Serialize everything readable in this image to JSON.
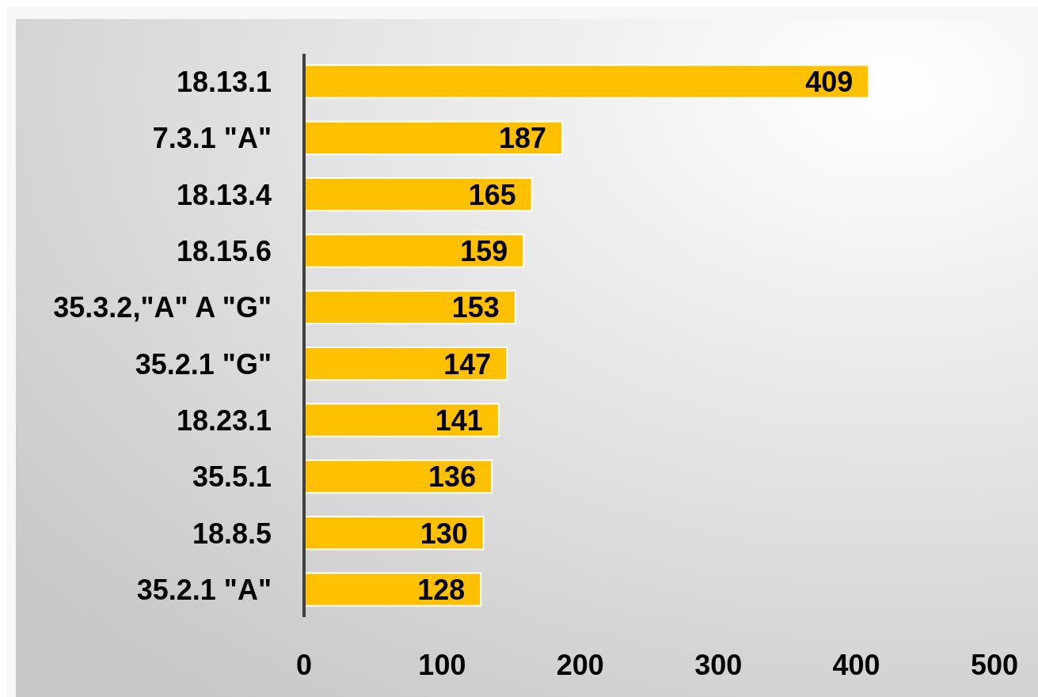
{
  "chart_data": {
    "type": "bar",
    "orientation": "horizontal",
    "categories": [
      "18.13.1",
      "7.3.1 \"A\"",
      "18.13.4",
      "18.15.6",
      "35.3.2,\"A\" A \"G\"",
      "35.2.1 \"G\"",
      "18.23.1",
      "35.5.1",
      "18.8.5",
      "35.2.1 \"A\""
    ],
    "values": [
      409,
      187,
      165,
      159,
      153,
      147,
      141,
      136,
      130,
      128
    ],
    "color": "#ffc000",
    "xlim": [
      0,
      500
    ],
    "xticks": [
      0,
      100,
      200,
      300,
      400,
      500
    ],
    "data_labels": true
  }
}
